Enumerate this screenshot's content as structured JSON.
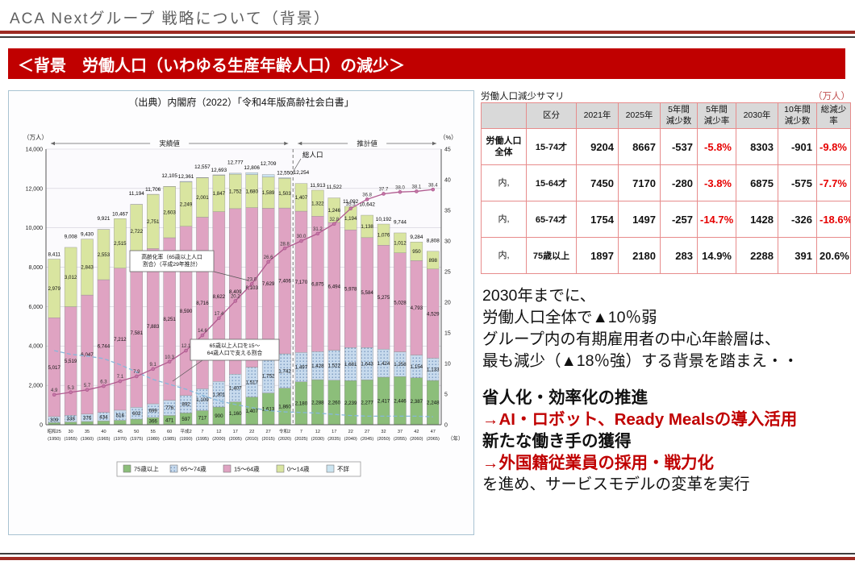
{
  "slide": {
    "title": "ACA Nextグループ 戦略について（背景）",
    "banner": "＜背景　労働人口（いわゆる生産年齢人口）の減少＞"
  },
  "colors": {
    "banner_red": "#c00000",
    "rule_maroon": "#9e2b23",
    "negative_red": "#e60000",
    "table_border_red": "#e78c8c",
    "header_gray": "#d9d9d9"
  },
  "chart": {
    "caption": "（出典）内閣府（2022）「令和4年版高齢社会白書」"
  },
  "chart_data": {
    "type": "bar",
    "subtype": "stacked-bars-with-rate-lines",
    "title": "（出典）内閣府（2022）「令和4年版高齢社会白書」",
    "ylim_left": [
      0,
      14000
    ],
    "ylim_right": [
      0,
      45
    ],
    "grid": true,
    "legend_position": "bottom",
    "labels": {
      "unit_left": "（万人）",
      "unit_right": "（%）",
      "unit_x": "（年）",
      "actual": "実績値",
      "projection": "推計値",
      "total_population": "総人口"
    },
    "divider_after_index": 14,
    "x_era": [
      "昭和25",
      "30",
      "35",
      "40",
      "45",
      "50",
      "55",
      "60",
      "平成2",
      "7",
      "12",
      "17",
      "22",
      "27",
      "令和2",
      "7",
      "12",
      "17",
      "22",
      "27",
      "32",
      "37",
      "42",
      "47"
    ],
    "x_year": [
      "(1950)",
      "(1955)",
      "(1960)",
      "(1965)",
      "(1970)",
      "(1975)",
      "(1980)",
      "(1985)",
      "(1990)",
      "(1995)",
      "(2000)",
      "(2005)",
      "(2010)",
      "(2015)",
      "(2020)",
      "(2025)",
      "(2030)",
      "(2035)",
      "(2040)",
      "(2045)",
      "(2050)",
      "(2055)",
      "(2060)",
      "(2065)"
    ],
    "series": [
      {
        "name": "75歳以上",
        "color": "#8cbe7a",
        "values": [
          107,
          139,
          164,
          189,
          224,
          284,
          366,
          471,
          597,
          717,
          900,
          1160,
          1407,
          1613,
          1860,
          2180,
          2288,
          2260,
          2239,
          2277,
          2417,
          2446,
          2387,
          2248
        ]
      },
      {
        "name": "65〜74歳",
        "color": "#c7daed",
        "pattern": "dots",
        "values": [
          309,
          338,
          376,
          434,
          516,
          602,
          699,
          776,
          892,
          1109,
          1301,
          1407,
          1517,
          1752,
          1742,
          1497,
          1428,
          1522,
          1681,
          1643,
          1424,
          1258,
          1154,
          1133
        ]
      },
      {
        "name": "15〜64歳",
        "color": "#dfa3c2",
        "values": [
          5017,
          5519,
          6047,
          6744,
          7212,
          7581,
          7883,
          8251,
          8590,
          8716,
          8622,
          8409,
          8103,
          7629,
          7406,
          7170,
          6875,
          6494,
          5978,
          5584,
          5275,
          5028,
          4793,
          4529
        ]
      },
      {
        "name": "0〜14歳",
        "color": "#d9e5a0",
        "values": [
          2979,
          3012,
          2843,
          2553,
          2515,
          2722,
          2751,
          2603,
          2249,
          2001,
          1847,
          1752,
          1680,
          1589,
          1503,
          1407,
          1322,
          1246,
          1194,
          1138,
          1076,
          1012,
          950,
          898
        ]
      },
      {
        "name": "不詳",
        "color": "#cbe4f0",
        "values": [
          0,
          0,
          0,
          1,
          0,
          5,
          7,
          4,
          33,
          14,
          23,
          49,
          99,
          126,
          39,
          0,
          0,
          0,
          0,
          0,
          0,
          0,
          0,
          0
        ]
      }
    ],
    "totals": [
      8411,
      9008,
      9430,
      9921,
      10467,
      11194,
      11706,
      12105,
      12361,
      12557,
      12693,
      12777,
      12806,
      12709,
      12550,
      12254,
      11913,
      11522,
      11092,
      10642,
      10192,
      9744,
      9284,
      8808
    ],
    "lines": [
      {
        "name": "高齢化率（65歳以上人口割合）（平成29年推計）",
        "axis": "right",
        "style": "solid",
        "color": "#b05a8f",
        "markers": true,
        "value_labels": true,
        "values": [
          4.9,
          5.3,
          5.7,
          6.3,
          7.1,
          7.9,
          9.1,
          10.3,
          12.1,
          14.6,
          17.4,
          20.2,
          23.0,
          26.6,
          28.8,
          30.0,
          31.2,
          32.8,
          35.3,
          36.8,
          37.7,
          38.0,
          38.1,
          38.4
        ]
      },
      {
        "name": "65歳以上人口を15〜64歳人口で支える割合",
        "axis": "right",
        "style": "dashed",
        "color": "#85b7da",
        "markers": false,
        "value_labels": false,
        "values": [
          12.1,
          11.5,
          11.2,
          10.8,
          9.8,
          8.6,
          7.4,
          6.6,
          5.8,
          4.8,
          3.9,
          3.3,
          2.8,
          2.3,
          2.1,
          2.0,
          1.9,
          1.7,
          1.5,
          1.4,
          1.4,
          1.4,
          1.4,
          1.3
        ]
      }
    ],
    "callouts": [
      {
        "lines": [
          "高齢化率（65歳以上人口",
          "割合）（平成29年推計）"
        ]
      },
      {
        "lines": [
          "65歳以上人口を15～",
          "64歳人口で支える割合"
        ]
      }
    ]
  },
  "table": {
    "title": "労働人口減少サマリ",
    "unit": "（万人）",
    "headers": [
      "",
      "区分",
      "2021年",
      "2025年",
      "5年間\n減少数",
      "5年間\n減少率",
      "2030年",
      "10年間\n減少数",
      "総減少率"
    ],
    "rows": [
      {
        "label": "労働人口\n全体",
        "label_bold": true,
        "cells": [
          {
            "v": "15-74才"
          },
          {
            "v": "9204"
          },
          {
            "v": "8667"
          },
          {
            "v": "-537"
          },
          {
            "v": "-5.8%",
            "red": true
          },
          {
            "v": "8303"
          },
          {
            "v": "-901"
          },
          {
            "v": "-9.8%",
            "red": true
          }
        ]
      },
      {
        "label": "内,",
        "label_bold": false,
        "cells": [
          {
            "v": "15-64才"
          },
          {
            "v": "7450"
          },
          {
            "v": "7170"
          },
          {
            "v": "-280"
          },
          {
            "v": "-3.8%",
            "red": true
          },
          {
            "v": "6875"
          },
          {
            "v": "-575"
          },
          {
            "v": "-7.7%",
            "red": true
          }
        ]
      },
      {
        "label": "内,",
        "label_bold": false,
        "cells": [
          {
            "v": "65-74才"
          },
          {
            "v": "1754"
          },
          {
            "v": "1497"
          },
          {
            "v": "-257"
          },
          {
            "v": "-14.7%",
            "red": true
          },
          {
            "v": "1428"
          },
          {
            "v": "-326"
          },
          {
            "v": "-18.6%",
            "red": true
          }
        ]
      },
      {
        "label": "内,",
        "label_bold": false,
        "cells": [
          {
            "v": "75歳以上"
          },
          {
            "v": "1897"
          },
          {
            "v": "2180"
          },
          {
            "v": "283"
          },
          {
            "v": "14.9%"
          },
          {
            "v": "2288"
          },
          {
            "v": "391"
          },
          {
            "v": "20.6%"
          }
        ]
      }
    ]
  },
  "analysis": {
    "lines": [
      {
        "text": "2030年までに、"
      },
      {
        "text": "労働人口全体で▲10％弱"
      },
      {
        "text": "グループ内の有期雇用者の中心年齢層は、"
      },
      {
        "text": "最も減少（▲18％強）する背景を踏まえ・・"
      },
      {
        "text": "",
        "spacer": true
      },
      {
        "text": "省人化・効率化の推進",
        "bold": true
      },
      {
        "text": "→AI・ロボット、Ready Mealsの導入活用",
        "bold": true,
        "red": true
      },
      {
        "text": "新たな働き手の獲得",
        "bold": true
      },
      {
        "text": "→外国籍従業員の採用・戦力化",
        "bold": true,
        "red": true
      },
      {
        "text": "を進め、サービスモデルの変革を実行"
      }
    ]
  }
}
